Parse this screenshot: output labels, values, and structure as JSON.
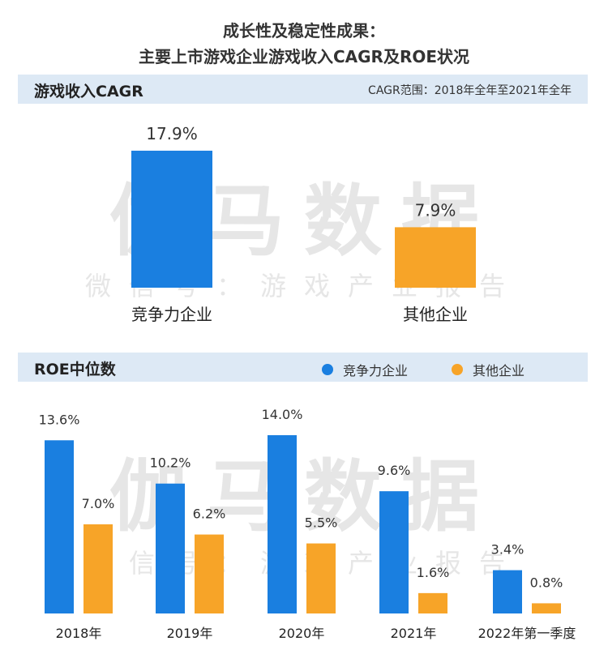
{
  "title_line1": "成长性及稳定性成果：",
  "title_line2": "主要上市游戏企业游戏收入CAGR及ROE状况",
  "watermark": {
    "big": "伽马数据",
    "small": "微信号：游戏产业报告"
  },
  "colors": {
    "blue": "#1a7fe0",
    "orange": "#f7a428",
    "band": "#dde9f5"
  },
  "chart_data": [
    {
      "type": "bar",
      "title": "游戏收入CAGR",
      "note": "CAGR范围：2018年全年至2021年全年",
      "categories": [
        "竞争力企业",
        "其他企业"
      ],
      "values": [
        17.9,
        7.9
      ],
      "value_labels": [
        "17.9%",
        "7.9%"
      ],
      "colors": [
        "#1a7fe0",
        "#f7a428"
      ],
      "ylim": [
        0,
        18
      ]
    },
    {
      "type": "bar",
      "title": "ROE中位数",
      "categories": [
        "2018年",
        "2019年",
        "2020年",
        "2021年",
        "2022年第一季度"
      ],
      "series": [
        {
          "name": "竞争力企业",
          "color": "#1a7fe0",
          "values": [
            13.6,
            10.2,
            14.0,
            9.6,
            3.4
          ],
          "labels": [
            "13.6%",
            "10.2%",
            "14.0%",
            "9.6%",
            "3.4%"
          ]
        },
        {
          "name": "其他企业",
          "color": "#f7a428",
          "values": [
            7.0,
            6.2,
            5.5,
            1.6,
            0.8
          ],
          "labels": [
            "7.0%",
            "6.2%",
            "5.5%",
            "1.6%",
            "0.8%"
          ]
        }
      ],
      "ylim": [
        0,
        14
      ]
    }
  ]
}
